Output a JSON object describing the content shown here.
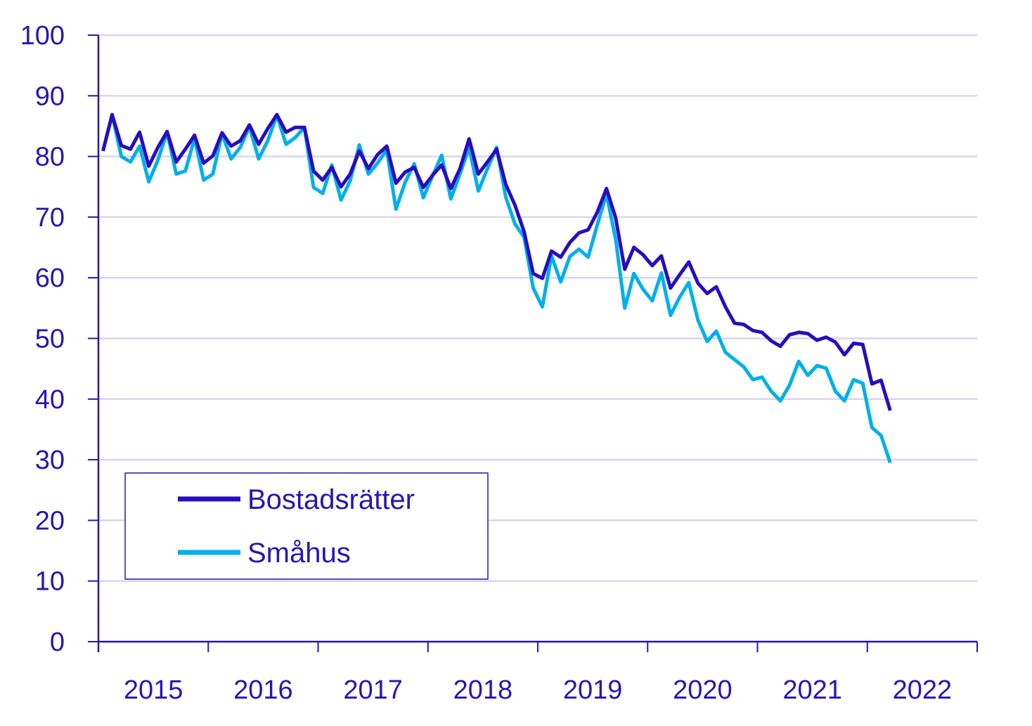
{
  "chart_data": {
    "type": "line",
    "title": "",
    "xlabel": "",
    "ylabel": "",
    "ylim": [
      0,
      100
    ],
    "yticks": [
      "0",
      "10",
      "20",
      "30",
      "40",
      "50",
      "60",
      "70",
      "80",
      "90",
      "100"
    ],
    "xticks": [
      "2015",
      "2016",
      "2017",
      "2018",
      "2019",
      "2020",
      "2021",
      "2022"
    ],
    "x_start": "2015-01",
    "x_frequency": "monthly",
    "grid": "horizontal",
    "legend_position": "bottom-left",
    "colors": {
      "axis": "#2a14b4",
      "grid": "#d8d5ef"
    },
    "series": [
      {
        "name": "Bostadsrätter",
        "color": "#2a0cbf",
        "values": [
          80.9,
          86.9,
          81.8,
          81.2,
          84.0,
          78.4,
          81.5,
          84.1,
          79.1,
          81.2,
          83.5,
          78.9,
          80.1,
          83.9,
          81.7,
          82.6,
          85.2,
          82.0,
          84.6,
          86.9,
          84.0,
          84.8,
          84.8,
          77.6,
          76.1,
          78.2,
          75.0,
          77.1,
          80.9,
          78.0,
          80.3,
          81.7,
          75.6,
          77.4,
          78.2,
          74.9,
          76.9,
          78.6,
          74.7,
          78.0,
          82.9,
          77.1,
          79.1,
          81.2,
          75.4,
          72.0,
          67.6,
          60.7,
          59.9,
          64.4,
          63.4,
          65.8,
          67.4,
          67.9,
          70.8,
          74.7,
          69.9,
          61.4,
          65.0,
          63.8,
          62.0,
          63.6,
          58.3,
          60.5,
          62.6,
          59.1,
          57.4,
          58.5,
          55.2,
          52.5,
          52.3,
          51.3,
          51.0,
          49.6,
          48.7,
          50.6,
          51.0,
          50.8,
          49.7,
          50.2,
          49.4,
          47.3,
          49.2,
          49.0,
          42.5,
          43.1,
          38.1
        ]
      },
      {
        "name": "Småhus",
        "color": "#00b0ea",
        "values": [
          80.9,
          86.9,
          80.0,
          79.1,
          81.7,
          75.8,
          79.4,
          84.0,
          77.1,
          77.6,
          83.0,
          76.1,
          77.1,
          83.8,
          79.6,
          81.5,
          84.9,
          79.6,
          82.6,
          86.8,
          82.0,
          83.1,
          84.8,
          74.9,
          73.9,
          78.6,
          72.8,
          76.0,
          81.9,
          77.1,
          78.9,
          81.1,
          71.3,
          75.7,
          78.8,
          73.2,
          76.8,
          80.2,
          73.0,
          77.1,
          81.5,
          74.3,
          78.0,
          81.5,
          73.3,
          68.9,
          66.7,
          58.3,
          55.2,
          63.6,
          59.3,
          63.5,
          64.7,
          63.4,
          68.7,
          73.8,
          66.4,
          55.0,
          60.7,
          58.1,
          56.2,
          60.8,
          53.8,
          56.8,
          59.2,
          53.0,
          49.5,
          51.2,
          47.7,
          46.5,
          45.3,
          43.2,
          43.6,
          41.3,
          39.7,
          42.3,
          46.2,
          43.9,
          45.5,
          45.1,
          41.3,
          39.7,
          43.2,
          42.6,
          35.3,
          34.0,
          29.5
        ]
      }
    ]
  }
}
